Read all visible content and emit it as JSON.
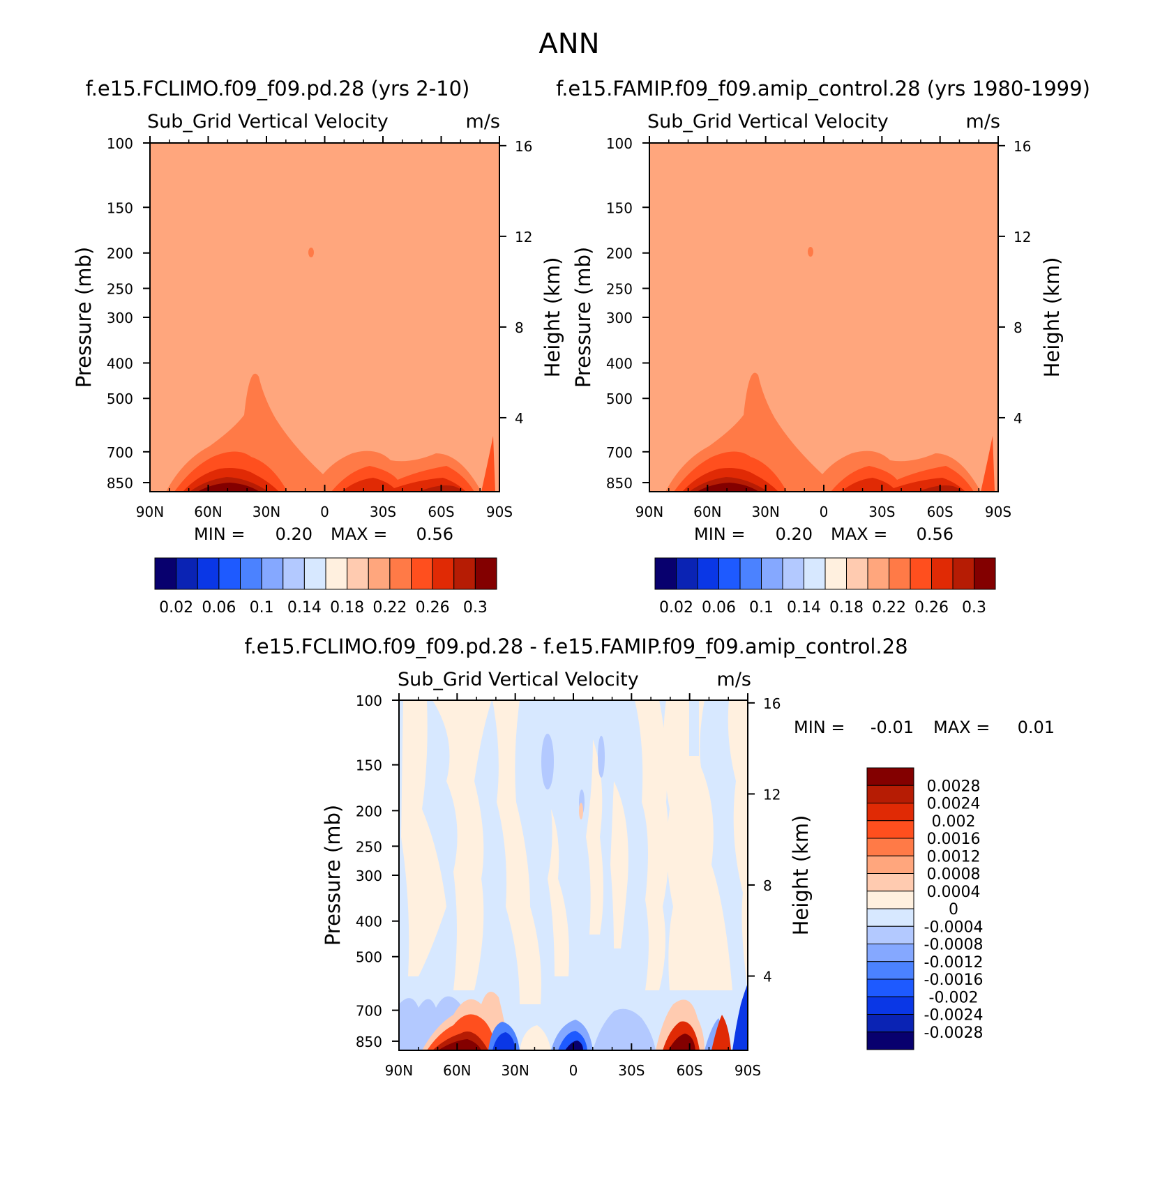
{
  "page": {
    "title": "ANN"
  },
  "chart_data": [
    {
      "type": "heatmap",
      "id": "p1",
      "title": "f.e15.FCLIMO.f09_f09.pd.28 (yrs 2-10)",
      "subtitle_left": "Sub_Grid Vertical Velocity",
      "subtitle_right": "m/s",
      "ylabel": "Pressure (mb)",
      "y2label": "Height (km)",
      "x_ticks": [
        "90N",
        "60N",
        "30N",
        "0",
        "30S",
        "60S",
        "90S"
      ],
      "y_ticks": [
        100,
        150,
        200,
        250,
        300,
        400,
        500,
        700,
        850
      ],
      "y_range": [
        100,
        1000
      ],
      "y_scale": "log",
      "y2_ticks": [
        16,
        12,
        8,
        4
      ],
      "stats": {
        "min_label": "MIN =",
        "min": "0.20",
        "max_label": "MAX =",
        "max": "0.56"
      },
      "colorbar": {
        "orientation": "horizontal",
        "labels": [
          "0.02",
          "0.06",
          "0.1",
          "0.14",
          "0.18",
          "0.22",
          "0.26",
          "0.3"
        ],
        "colors": [
          "#08006e",
          "#0a23b4",
          "#0a37e6",
          "#1e5aff",
          "#4b82ff",
          "#85a8ff",
          "#b3c9ff",
          "#d7e8ff",
          "#fff0df",
          "#ffcbb0",
          "#ffa67d",
          "#ff7a47",
          "#ff4f1e",
          "#e02a05",
          "#b61c04",
          "#830000"
        ]
      },
      "field": {
        "background_level": "0.2-0.22",
        "feature": "surface maximum over 40N-30N and 60S, plume at 30N reaching 450 mb"
      }
    },
    {
      "type": "heatmap",
      "id": "p2",
      "title": "f.e15.FAMIP.f09_f09.amip_control.28 (yrs 1980-1999)",
      "subtitle_left": "Sub_Grid Vertical Velocity",
      "subtitle_right": "m/s",
      "ylabel": "Pressure (mb)",
      "y2label": "Height (km)",
      "x_ticks": [
        "90N",
        "60N",
        "30N",
        "0",
        "30S",
        "60S",
        "90S"
      ],
      "y_ticks": [
        100,
        150,
        200,
        250,
        300,
        400,
        500,
        700,
        850
      ],
      "y_range": [
        100,
        1000
      ],
      "y_scale": "log",
      "y2_ticks": [
        16,
        12,
        8,
        4
      ],
      "stats": {
        "min_label": "MIN =",
        "min": "0.20",
        "max_label": "MAX =",
        "max": "0.56"
      },
      "colorbar": {
        "orientation": "horizontal",
        "labels": [
          "0.02",
          "0.06",
          "0.1",
          "0.14",
          "0.18",
          "0.22",
          "0.26",
          "0.3"
        ],
        "colors": [
          "#08006e",
          "#0a23b4",
          "#0a37e6",
          "#1e5aff",
          "#4b82ff",
          "#85a8ff",
          "#b3c9ff",
          "#d7e8ff",
          "#fff0df",
          "#ffcbb0",
          "#ffa67d",
          "#ff7a47",
          "#ff4f1e",
          "#e02a05",
          "#b61c04",
          "#830000"
        ]
      }
    },
    {
      "type": "heatmap",
      "id": "p3",
      "title": "f.e15.FCLIMO.f09_f09.pd.28 - f.e15.FAMIP.f09_f09.amip_control.28",
      "subtitle_left": "Sub_Grid Vertical Velocity",
      "subtitle_right": "m/s",
      "ylabel": "Pressure (mb)",
      "y2label": "Height (km)",
      "x_ticks": [
        "90N",
        "60N",
        "30N",
        "0",
        "30S",
        "60S",
        "90S"
      ],
      "y_ticks": [
        100,
        150,
        200,
        250,
        300,
        400,
        500,
        700,
        850
      ],
      "y_range": [
        100,
        1000
      ],
      "y_scale": "log",
      "y2_ticks": [
        16,
        12,
        8,
        4
      ],
      "stats": {
        "min_label": "MIN =",
        "min": "-0.01",
        "max_label": "MAX =",
        "max": "0.01"
      },
      "colorbar": {
        "orientation": "vertical",
        "labels": [
          "0.0028",
          "0.0024",
          "0.002",
          "0.0016",
          "0.0012",
          "0.0008",
          "0.0004",
          "0",
          "-0.0004",
          "-0.0008",
          "-0.0012",
          "-0.0016",
          "-0.002",
          "-0.0024",
          "-0.0028"
        ],
        "colors": [
          "#830000",
          "#b61c04",
          "#e02a05",
          "#ff4f1e",
          "#ff7a47",
          "#ffa67d",
          "#ffcbb0",
          "#fff0df",
          "#d7e8ff",
          "#b3c9ff",
          "#85a8ff",
          "#4b82ff",
          "#1e5aff",
          "#0a37e6",
          "#0a23b4",
          "#08006e"
        ]
      }
    }
  ]
}
